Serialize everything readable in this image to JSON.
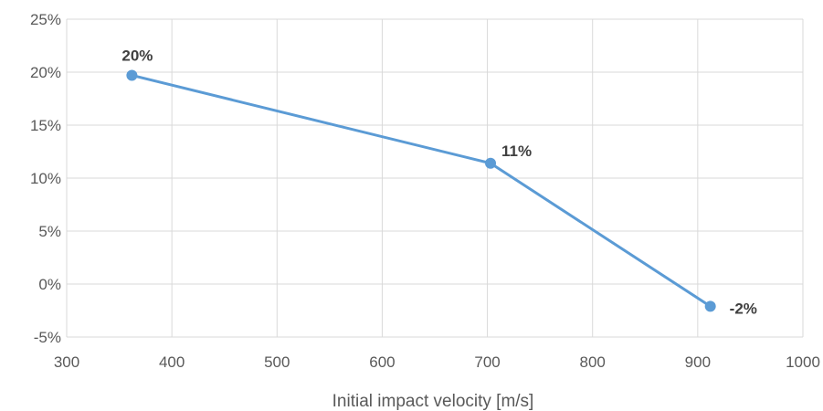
{
  "chart_data": {
    "type": "line",
    "title": "",
    "xlabel": "Initial impact velocity [m/s]",
    "ylabel": "",
    "xlim": [
      300,
      1000
    ],
    "ylim": [
      -5,
      25
    ],
    "x_ticks": [
      300,
      400,
      500,
      600,
      700,
      800,
      900,
      1000
    ],
    "x_tick_labels": [
      "300",
      "400",
      "500",
      "600",
      "700",
      "800",
      "900",
      "1000"
    ],
    "y_ticks": [
      -5,
      0,
      5,
      10,
      15,
      20,
      25
    ],
    "y_tick_labels": [
      "-5%",
      "0%",
      "5%",
      "10%",
      "15%",
      "20%",
      "25%"
    ],
    "grid": true,
    "legend": "none",
    "series": [
      {
        "color": "#5b9bd5",
        "points": [
          {
            "x": 362,
            "y": 19.7,
            "label": "20%"
          },
          {
            "x": 703,
            "y": 11.4,
            "label": "11%"
          },
          {
            "x": 912,
            "y": -2.1,
            "label": "-2%"
          }
        ]
      }
    ],
    "colors": {
      "line": "#5b9bd5",
      "grid": "#d9d9d9",
      "text": "#595959",
      "data_label": "#404040"
    }
  }
}
